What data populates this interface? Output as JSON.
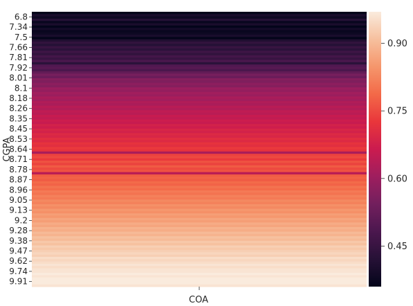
{
  "chart_data": {
    "type": "heatmap",
    "title": "",
    "xlabel": "COA",
    "ylabel": "CGPA",
    "x_categories": [
      "COA"
    ],
    "y_tick_labels": [
      "6.8",
      "7.34",
      "7.5",
      "7.66",
      "7.81",
      "7.92",
      "8.01",
      "8.1",
      "8.18",
      "8.26",
      "8.35",
      "8.45",
      "8.53",
      "8.64",
      "8.71",
      "8.78",
      "8.87",
      "8.96",
      "9.05",
      "9.13",
      "9.2",
      "9.28",
      "9.38",
      "9.47",
      "9.62",
      "9.74",
      "9.91"
    ],
    "colorbar": {
      "colormap": "rocket",
      "range": [
        0.36,
        0.97
      ],
      "ticks": [
        0.45,
        0.6,
        0.75,
        0.9
      ],
      "tick_labels": [
        "0.45",
        "0.60",
        "0.75",
        "0.90"
      ]
    },
    "values": [
      0.36,
      0.4,
      0.38,
      0.42,
      0.37,
      0.4,
      0.36,
      0.39,
      0.37,
      0.38,
      0.4,
      0.36,
      0.41,
      0.44,
      0.42,
      0.45,
      0.43,
      0.46,
      0.44,
      0.47,
      0.45,
      0.48,
      0.43,
      0.49,
      0.5,
      0.48,
      0.52,
      0.55,
      0.53,
      0.57,
      0.56,
      0.58,
      0.57,
      0.6,
      0.59,
      0.61,
      0.6,
      0.62,
      0.61,
      0.63,
      0.62,
      0.64,
      0.63,
      0.65,
      0.64,
      0.66,
      0.65,
      0.67,
      0.66,
      0.68,
      0.67,
      0.69,
      0.68,
      0.7,
      0.69,
      0.71,
      0.7,
      0.72,
      0.71,
      0.73,
      0.72,
      0.62,
      0.74,
      0.75,
      0.73,
      0.76,
      0.74,
      0.77,
      0.75,
      0.76,
      0.64,
      0.77,
      0.78,
      0.77,
      0.79,
      0.78,
      0.8,
      0.79,
      0.81,
      0.8,
      0.82,
      0.81,
      0.83,
      0.82,
      0.84,
      0.83,
      0.85,
      0.84,
      0.86,
      0.85,
      0.87,
      0.86,
      0.88,
      0.87,
      0.89,
      0.88,
      0.9,
      0.89,
      0.91,
      0.9,
      0.92,
      0.91,
      0.93,
      0.92,
      0.93,
      0.94,
      0.93,
      0.95,
      0.94,
      0.95,
      0.96,
      0.95,
      0.96,
      0.96,
      0.97,
      0.96,
      0.97,
      0.97,
      0.97,
      0.96
    ]
  }
}
